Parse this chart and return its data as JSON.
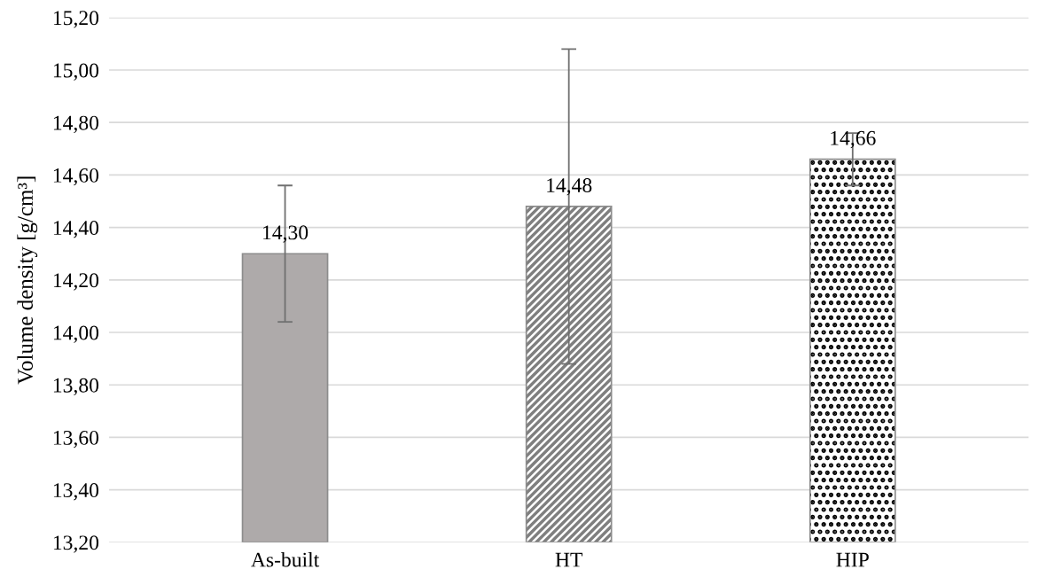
{
  "chart_data": {
    "type": "bar",
    "ylabel": "Volume density [g/cm³]",
    "categories": [
      "As-built",
      "HT",
      "HIP"
    ],
    "values": [
      14.3,
      14.48,
      14.66
    ],
    "errors": [
      0.26,
      0.6,
      0.1
    ],
    "colors": [
      "#aeaaaa",
      "#7f7f7f",
      "#000000"
    ],
    "value_labels": [
      "14,30",
      "14,48",
      "14,66"
    ],
    "ylim": [
      13.2,
      15.2
    ],
    "yticks": [
      {
        "value": 13.2,
        "label": "13,20"
      },
      {
        "value": 13.4,
        "label": "13,40"
      },
      {
        "value": 13.6,
        "label": "13,60"
      },
      {
        "value": 13.8,
        "label": "13,80"
      },
      {
        "value": 14.0,
        "label": "14,00"
      },
      {
        "value": 14.2,
        "label": "14,20"
      },
      {
        "value": 14.4,
        "label": "14,40"
      },
      {
        "value": 14.6,
        "label": "14,60"
      },
      {
        "value": 14.8,
        "label": "14,80"
      },
      {
        "value": 15.0,
        "label": "15,00"
      },
      {
        "value": 15.2,
        "label": "15,20"
      }
    ],
    "grid": "y"
  }
}
